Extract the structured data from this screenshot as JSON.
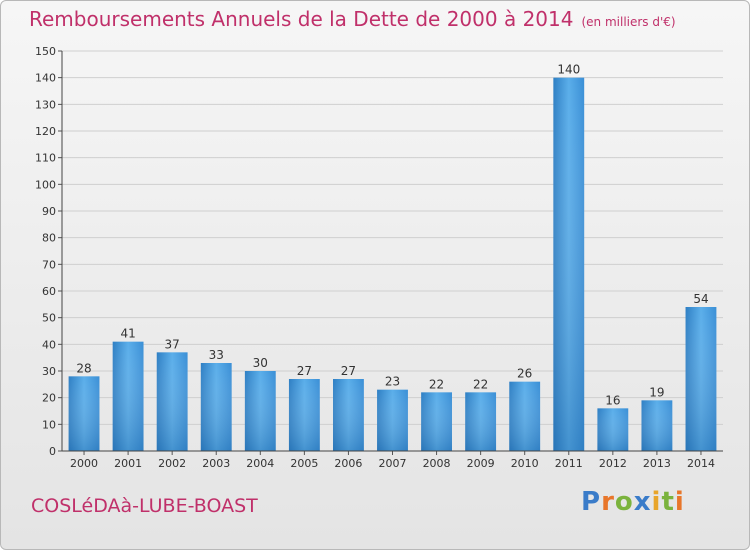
{
  "title": "Remboursements Annuels de la Dette de 2000 à 2014",
  "unit_note": "(en milliers d'€)",
  "commune": "COSLéDAà-LUBE-BOAST",
  "logo": {
    "letters": [
      {
        "char": "P",
        "color": "#3a7cc9"
      },
      {
        "char": "r",
        "color": "#e8762a"
      },
      {
        "char": "o",
        "color": "#7bb33d"
      },
      {
        "char": "x",
        "color": "#3a7cc9"
      },
      {
        "char": "i",
        "color": "#e8a52a"
      },
      {
        "char": "t",
        "color": "#7bb33d"
      },
      {
        "char": "i",
        "color": "#e8762a"
      }
    ]
  },
  "chart_data": {
    "type": "bar",
    "categories": [
      "2000",
      "2001",
      "2002",
      "2003",
      "2004",
      "2005",
      "2006",
      "2007",
      "2008",
      "2009",
      "2010",
      "2011",
      "2012",
      "2013",
      "2014"
    ],
    "values": [
      28,
      41,
      37,
      33,
      30,
      27,
      27,
      23,
      22,
      22,
      26,
      140,
      16,
      19,
      54
    ],
    "ylim": [
      0,
      150
    ],
    "yticks": [
      0,
      10,
      20,
      30,
      40,
      50,
      60,
      70,
      80,
      90,
      100,
      110,
      120,
      130,
      140,
      150
    ],
    "grid": true,
    "bar_color": "#4a9ee0"
  }
}
